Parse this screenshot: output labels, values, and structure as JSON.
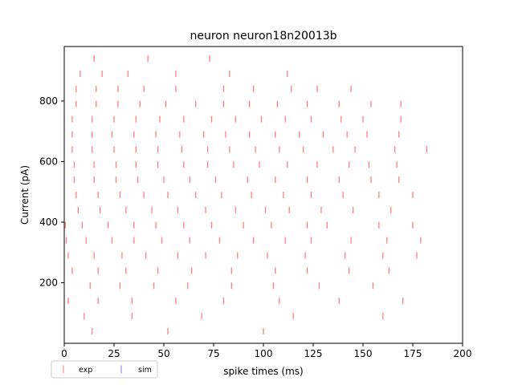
{
  "chart_data": {
    "type": "scatter",
    "title": "neuron neuron18n20013b",
    "xlabel": "spike times (ms)",
    "ylabel": "Current (pA)",
    "xlim": [
      0,
      200
    ],
    "ylim": [
      0,
      980
    ],
    "xticks": [
      0,
      25,
      50,
      75,
      100,
      125,
      150,
      175,
      200
    ],
    "yticks": [
      200,
      400,
      600,
      800
    ],
    "grid": false,
    "legend_position": "bottom-left, below axes",
    "series": [
      {
        "name": "exp",
        "color": "#ff7f7f",
        "marker": "vertical-line",
        "trials": [
          {
            "current": 40,
            "spikes": [
              14,
              52,
              100
            ]
          },
          {
            "current": 90,
            "spikes": [
              10,
              34,
              69,
              115,
              160
            ]
          },
          {
            "current": 140,
            "spikes": [
              2,
              17,
              34,
              56,
              80,
              108,
              138,
              170
            ]
          },
          {
            "current": 190,
            "spikes": [
              13,
              28,
              45,
              62,
              84,
              105,
              128,
              155
            ]
          },
          {
            "current": 240,
            "spikes": [
              4,
              17,
              31,
              47,
              64,
              84,
              106,
              122,
              143,
              163
            ]
          },
          {
            "current": 290,
            "spikes": [
              2,
              15,
              29,
              41,
              57,
              71,
              87,
              102,
              121,
              141,
              160,
              177
            ]
          },
          {
            "current": 340,
            "spikes": [
              1,
              11,
              24,
              35,
              49,
              63,
              78,
              95,
              111,
              124,
              144,
              162,
              179
            ]
          },
          {
            "current": 390,
            "spikes": [
              0.5,
              9,
              22,
              35,
              46,
              60,
              74,
              90,
              104,
              122,
              132,
              158,
              175
            ]
          },
          {
            "current": 440,
            "spikes": [
              7,
              18,
              31,
              44,
              57,
              71,
              86,
              101,
              113,
              129,
              145,
              164
            ]
          },
          {
            "current": 490,
            "spikes": [
              6,
              17,
              28,
              40,
              52,
              66,
              79,
              94,
              110,
              124,
              140,
              158,
              175
            ]
          },
          {
            "current": 540,
            "spikes": [
              5,
              15,
              26,
              37,
              50,
              63,
              76,
              92,
              106,
              122,
              138,
              154,
              168
            ]
          },
          {
            "current": 590,
            "spikes": [
              5,
              15,
              26,
              36,
              47,
              60,
              72,
              85,
              98,
              112,
              127,
              143,
              153,
              167
            ]
          },
          {
            "current": 640,
            "spikes": [
              4,
              14,
              25,
              36,
              47,
              59,
              72,
              83,
              96,
              108,
              120,
              135,
              146,
              166,
              182
            ]
          },
          {
            "current": 690,
            "spikes": [
              4,
              14,
              24,
              35,
              46,
              58,
              70,
              81,
              93,
              106,
              118,
              130,
              142,
              152,
              168
            ]
          },
          {
            "current": 740,
            "spikes": [
              4,
              14,
              25,
              36,
              48,
              60,
              74,
              86,
              99,
              111,
              124,
              139,
              150,
              169
            ]
          },
          {
            "current": 790,
            "spikes": [
              6,
              16,
              27,
              38,
              51,
              66,
              80,
              93,
              107,
              122,
              138,
              154,
              169
            ]
          },
          {
            "current": 840,
            "spikes": [
              6,
              16,
              27,
              40,
              56,
              80,
              95,
              114,
              127,
              144
            ]
          },
          {
            "current": 890,
            "spikes": [
              8,
              19,
              32,
              56,
              83,
              112
            ]
          },
          {
            "current": 940,
            "spikes": [
              15,
              42,
              73
            ]
          }
        ]
      },
      {
        "name": "sim",
        "color": "#7f7fff",
        "marker": "vertical-line",
        "trials": []
      }
    ]
  },
  "legend": {
    "items": [
      {
        "label": "exp",
        "color": "#ff7f7f"
      },
      {
        "label": "sim",
        "color": "#7f7fff"
      }
    ]
  }
}
